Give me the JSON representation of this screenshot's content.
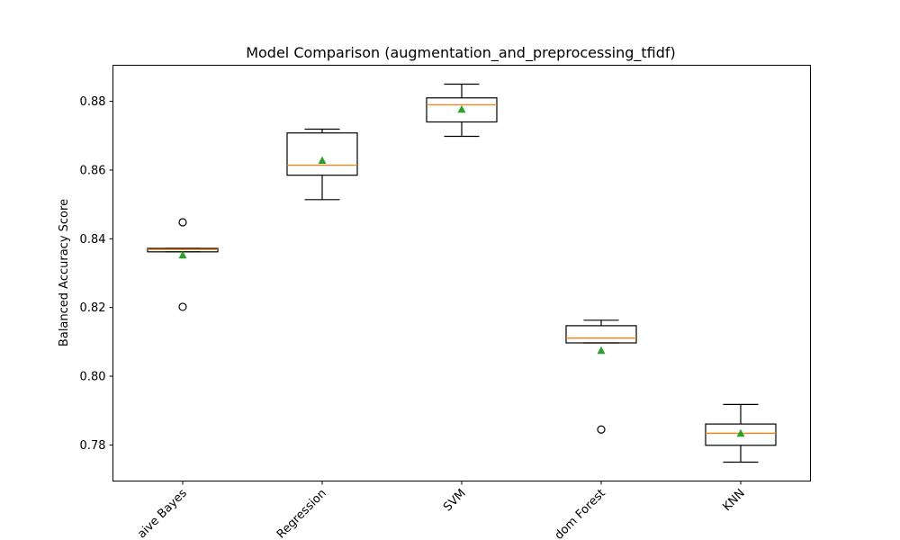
{
  "chart_data": {
    "type": "box",
    "title": "Model Comparison (augmentation_and_preprocessing_tfidf)",
    "xlabel": "",
    "ylabel": "Balanced Accuracy Score",
    "ylim": [
      0.7695,
      0.8905
    ],
    "yticks": [
      0.78,
      0.8,
      0.82,
      0.84,
      0.86,
      0.88
    ],
    "ytick_labels": [
      "0.78",
      "0.80",
      "0.82",
      "0.84",
      "0.86",
      "0.88"
    ],
    "categories": [
      "aive Bayes",
      "Regression",
      "SVM",
      "dom Forest",
      "KNN"
    ],
    "grid": false,
    "colors": {
      "box": "#000000",
      "median": "#ff7f0e",
      "mean": "#2ca02c",
      "flier": "#000000"
    },
    "boxes": [
      {
        "label": "aive Bayes",
        "whislo": 0.8362,
        "q1": 0.8362,
        "median": 0.8369,
        "q3": 0.8372,
        "whishi": 0.8372,
        "mean": 0.8352,
        "fliers": [
          0.8448,
          0.8202
        ]
      },
      {
        "label": "Regression",
        "whislo": 0.8514,
        "q1": 0.8585,
        "median": 0.8614,
        "q3": 0.8708,
        "whishi": 0.8719,
        "mean": 0.8627,
        "fliers": []
      },
      {
        "label": "SVM",
        "whislo": 0.8698,
        "q1": 0.874,
        "median": 0.879,
        "q3": 0.881,
        "whishi": 0.885,
        "mean": 0.8776,
        "fliers": []
      },
      {
        "label": "dom Forest",
        "whislo": 0.8097,
        "q1": 0.8097,
        "median": 0.8111,
        "q3": 0.8147,
        "whishi": 0.8163,
        "mean": 0.8074,
        "fliers": [
          0.7845
        ]
      },
      {
        "label": "KNN",
        "whislo": 0.775,
        "q1": 0.7799,
        "median": 0.7834,
        "q3": 0.7861,
        "whishi": 0.7918,
        "mean": 0.7833,
        "fliers": []
      }
    ]
  }
}
